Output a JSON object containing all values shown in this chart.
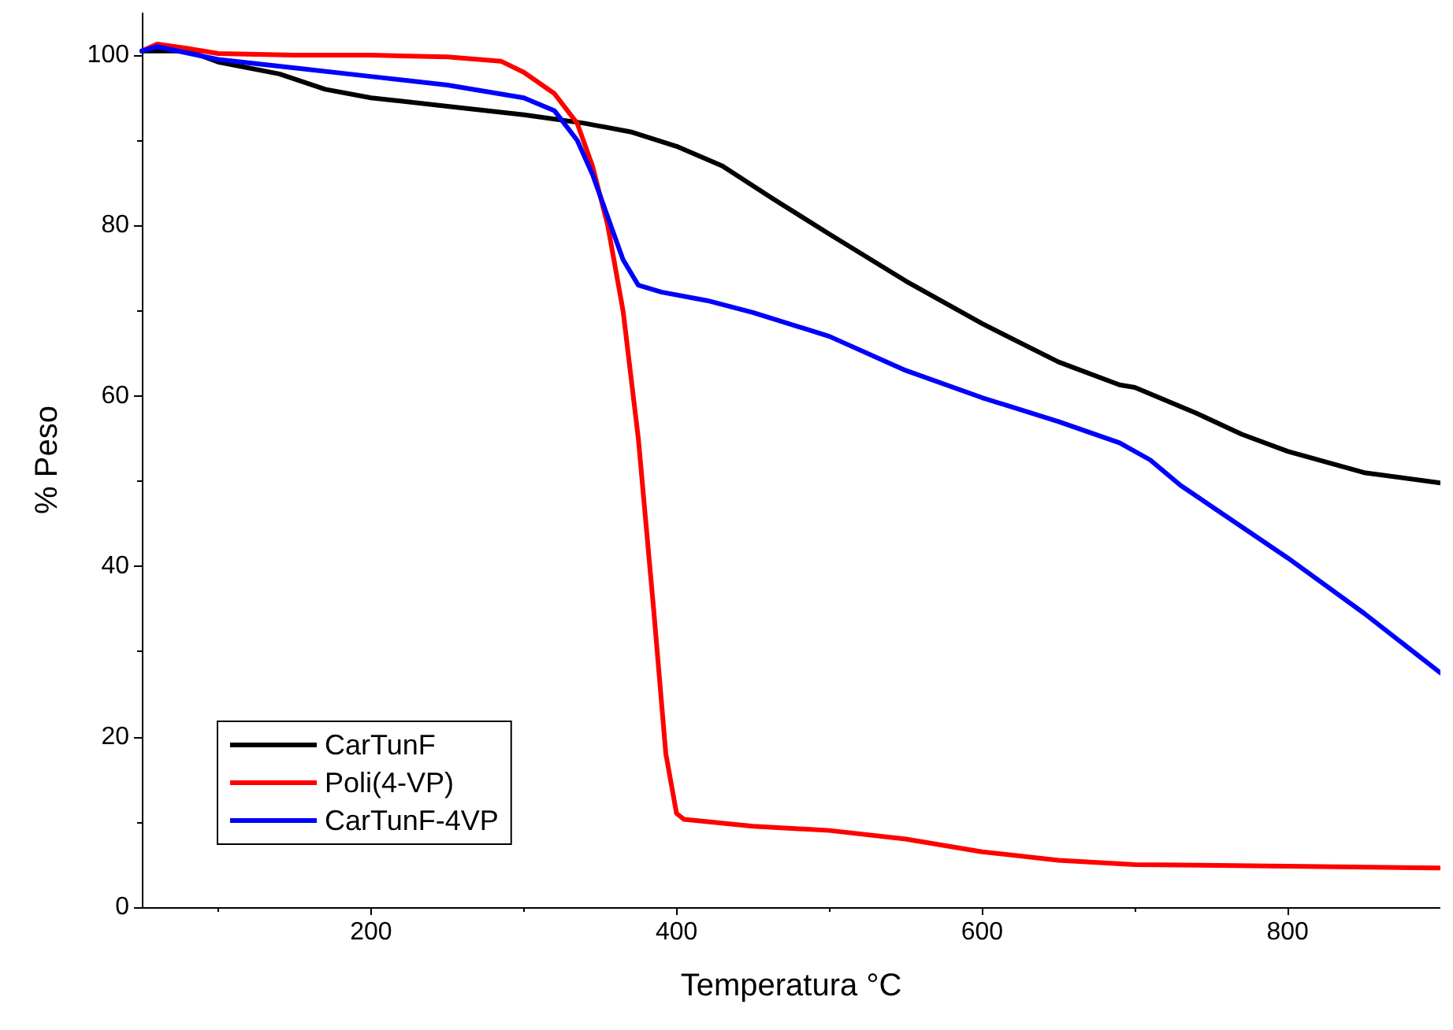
{
  "chart_data": {
    "type": "line",
    "xlabel": "Temperatura °C",
    "ylabel": "% Peso",
    "xlim": [
      50,
      900
    ],
    "ylim": [
      0,
      105
    ],
    "xticks": [
      200,
      400,
      600,
      800
    ],
    "yticks": [
      0,
      20,
      40,
      60,
      80,
      100
    ],
    "grid": false,
    "legend": "bottom left",
    "marker": "none",
    "line_style": "solid",
    "series": [
      {
        "name": "CarTunF",
        "color": "#000000",
        "x": [
          50,
          60,
          80,
          100,
          140,
          170,
          200,
          250,
          300,
          340,
          370,
          400,
          430,
          460,
          500,
          550,
          600,
          650,
          690,
          700,
          740,
          770,
          800,
          850,
          900
        ],
        "values": [
          100.5,
          null,
          100.5,
          99.2,
          97.8,
          96,
          95,
          94,
          93,
          92,
          91,
          89.3,
          87,
          83.5,
          79,
          73.5,
          68.5,
          64,
          61.3,
          61,
          58,
          55.5,
          53.5,
          51,
          49.8
        ]
      },
      {
        "name": "Poli(4-VP)",
        "color": "#ff0000",
        "x": [
          50,
          60,
          80,
          100,
          150,
          200,
          250,
          285,
          300,
          320,
          335,
          345,
          355,
          365,
          375,
          385,
          393,
          400,
          405,
          450,
          500,
          550,
          600,
          650,
          700,
          800,
          900
        ],
        "values": [
          100.5,
          101.3,
          100.8,
          100.2,
          100,
          100,
          99.8,
          99.3,
          98,
          95.5,
          92,
          87,
          80,
          70,
          55,
          35,
          18,
          11,
          10.3,
          9.5,
          9,
          8,
          6.5,
          5.5,
          5,
          4.8,
          4.6
        ]
      },
      {
        "name": "CarTunF-4VP",
        "color": "#0000ff",
        "x": [
          50,
          60,
          100,
          150,
          200,
          250,
          300,
          320,
          335,
          345,
          355,
          365,
          375,
          390,
          420,
          450,
          500,
          550,
          600,
          650,
          690,
          710,
          730,
          800,
          850,
          900
        ],
        "values": [
          100.5,
          101,
          99.5,
          98.5,
          97.5,
          96.5,
          95,
          93.5,
          90,
          86,
          81,
          76,
          73,
          72.2,
          71.2,
          69.8,
          67,
          63,
          59.8,
          57,
          54.5,
          52.5,
          49.5,
          41,
          34.5,
          27.5
        ]
      }
    ]
  }
}
